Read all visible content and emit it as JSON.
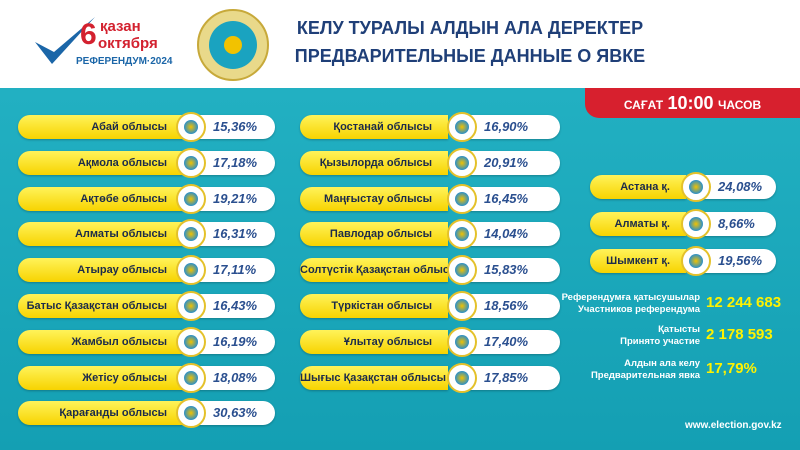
{
  "header": {
    "logo": {
      "day": "6",
      "month_kz": "қазан",
      "month_ru": "октября",
      "event": "РЕФЕРЕНДУМ·2024"
    },
    "title_kz": "КЕЛУ ТУРАЛЫ АЛДЫН АЛА ДЕРЕКТЕР",
    "title_ru": "ПРЕДВАРИТЕЛЬНЫЕ ДАННЫЕ О ЯВКЕ"
  },
  "time_badge": {
    "prefix": "САҒАТ",
    "time": "10:00",
    "suffix": "ЧАСОВ"
  },
  "regions_left": [
    {
      "name": "Абай облысы",
      "turnout": "15,36%"
    },
    {
      "name": "Ақмола облысы",
      "turnout": "17,18%"
    },
    {
      "name": "Ақтөбе облысы",
      "turnout": "19,21%"
    },
    {
      "name": "Алматы облысы",
      "turnout": "16,31%"
    },
    {
      "name": "Атырау облысы",
      "turnout": "17,11%"
    },
    {
      "name": "Батыс Қазақстан облысы",
      "turnout": "16,43%"
    },
    {
      "name": "Жамбыл облысы",
      "turnout": "16,19%"
    },
    {
      "name": "Жетісу облысы",
      "turnout": "18,08%"
    },
    {
      "name": "Қарағанды облысы",
      "turnout": "30,63%"
    }
  ],
  "regions_middle": [
    {
      "name": "Қостанай облысы",
      "turnout": "16,90%"
    },
    {
      "name": "Қызылорда облысы",
      "turnout": "20,91%"
    },
    {
      "name": "Маңғыстау облысы",
      "turnout": "16,45%"
    },
    {
      "name": "Павлодар облысы",
      "turnout": "14,04%"
    },
    {
      "name": "Солтүстік Қазақстан облысы",
      "turnout": "15,83%"
    },
    {
      "name": "Түркістан облысы",
      "turnout": "18,56%"
    },
    {
      "name": "Ұлытау облысы",
      "turnout": "17,40%"
    },
    {
      "name": "Шығыс Қазақстан облысы",
      "turnout": "17,85%"
    }
  ],
  "cities": [
    {
      "name": "Астана қ.",
      "turnout": "24,08%"
    },
    {
      "name": "Алматы қ.",
      "turnout": "8,66%"
    },
    {
      "name": "Шымкент қ.",
      "turnout": "19,56%"
    }
  ],
  "summary": [
    {
      "label_kz": "Референдумға қатысушылар",
      "label_ru": "Участников референдума",
      "value": "12 244 683"
    },
    {
      "label_kz": "Қатысты",
      "label_ru": "Принято участие",
      "value": "2 178 593"
    },
    {
      "label_kz": "Алдын ала келу",
      "label_ru": "Предварительная явка",
      "value": "17,79%"
    }
  ],
  "footer": {
    "website": "www.election.gov.kz"
  }
}
